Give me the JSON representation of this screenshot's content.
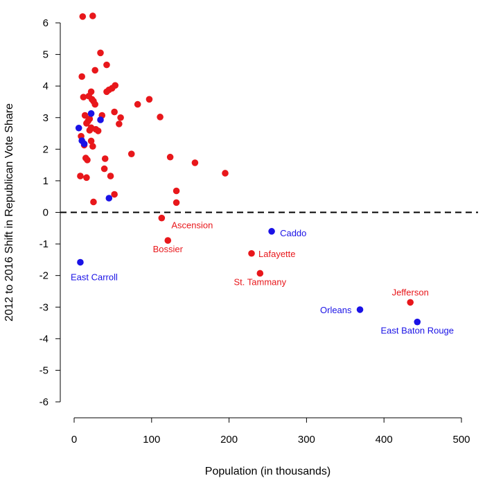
{
  "chart_data": {
    "type": "scatter",
    "title": "",
    "xlabel": "Population (in thousands)",
    "ylabel": "2012 to 2016 Shift in Republican Vote Share",
    "xlim": [
      0,
      500
    ],
    "ylim": [
      -6,
      6
    ],
    "xticks": [
      "0",
      "100",
      "200",
      "300",
      "400",
      "500"
    ],
    "yticks": [
      "-6",
      "-5",
      "-4",
      "-3",
      "-2",
      "-1",
      "0",
      "1",
      "2",
      "3",
      "4",
      "5",
      "6"
    ],
    "reference_line": {
      "y": 0,
      "style": "dashed"
    },
    "colors": {
      "red": "#e8171b",
      "blue": "#1a12e6"
    },
    "series": [
      {
        "name": "red",
        "color": "#e8171b",
        "points": [
          [
            11,
            6.2
          ],
          [
            24,
            6.22
          ],
          [
            34,
            5.05
          ],
          [
            42,
            4.67
          ],
          [
            10,
            4.3
          ],
          [
            27,
            4.5
          ],
          [
            53,
            4.02
          ],
          [
            49,
            3.93
          ],
          [
            45,
            3.88
          ],
          [
            42,
            3.82
          ],
          [
            22,
            3.82
          ],
          [
            19,
            3.68
          ],
          [
            12,
            3.65
          ],
          [
            23,
            3.58
          ],
          [
            25,
            3.52
          ],
          [
            27,
            3.42
          ],
          [
            97,
            3.58
          ],
          [
            82,
            3.42
          ],
          [
            111,
            3.02
          ],
          [
            52,
            3.18
          ],
          [
            60,
            3.0
          ],
          [
            58,
            2.8
          ],
          [
            36,
            3.07
          ],
          [
            14,
            3.07
          ],
          [
            20,
            2.96
          ],
          [
            18,
            2.89
          ],
          [
            16,
            2.82
          ],
          [
            22,
            2.68
          ],
          [
            20,
            2.6
          ],
          [
            28,
            2.63
          ],
          [
            31,
            2.58
          ],
          [
            9,
            2.41
          ],
          [
            22,
            2.26
          ],
          [
            24,
            2.09
          ],
          [
            13,
            2.13
          ],
          [
            74,
            1.85
          ],
          [
            124,
            1.75
          ],
          [
            156,
            1.57
          ],
          [
            195,
            1.24
          ],
          [
            40,
            1.7
          ],
          [
            15,
            1.72
          ],
          [
            17,
            1.66
          ],
          [
            39,
            1.38
          ],
          [
            47,
            1.15
          ],
          [
            8,
            1.15
          ],
          [
            16,
            1.1
          ],
          [
            132,
            0.68
          ],
          [
            52,
            0.57
          ],
          [
            25,
            0.33
          ],
          [
            132,
            0.31
          ],
          [
            113,
            -0.18
          ],
          [
            121,
            -0.89
          ],
          [
            229,
            -1.3
          ],
          [
            240,
            -1.93
          ],
          [
            434,
            -2.85
          ]
        ]
      },
      {
        "name": "blue",
        "color": "#1a12e6",
        "points": [
          [
            22,
            3.13
          ],
          [
            34,
            2.93
          ],
          [
            6,
            2.67
          ],
          [
            10,
            2.27
          ],
          [
            13,
            2.17
          ],
          [
            45,
            0.45
          ],
          [
            255,
            -0.6
          ],
          [
            8,
            -1.58
          ],
          [
            369,
            -3.08
          ],
          [
            443,
            -3.47
          ]
        ]
      }
    ],
    "annotations": [
      {
        "text": "Ascension",
        "x": 113,
        "y": -0.18,
        "color": "#e8171b"
      },
      {
        "text": "Bossier",
        "x": 121,
        "y": -0.89,
        "color": "#e8171b"
      },
      {
        "text": "Lafayette",
        "x": 229,
        "y": -1.3,
        "color": "#e8171b"
      },
      {
        "text": "St. Tammany",
        "x": 240,
        "y": -1.93,
        "color": "#e8171b"
      },
      {
        "text": "Jefferson",
        "x": 434,
        "y": -2.85,
        "color": "#e8171b"
      },
      {
        "text": "Caddo",
        "x": 255,
        "y": -0.6,
        "color": "#1a12e6"
      },
      {
        "text": "East Carroll",
        "x": 8,
        "y": -1.58,
        "color": "#1a12e6"
      },
      {
        "text": "Orleans",
        "x": 369,
        "y": -3.08,
        "color": "#1a12e6"
      },
      {
        "text": "East Baton Rouge",
        "x": 443,
        "y": -3.47,
        "color": "#1a12e6"
      }
    ]
  }
}
